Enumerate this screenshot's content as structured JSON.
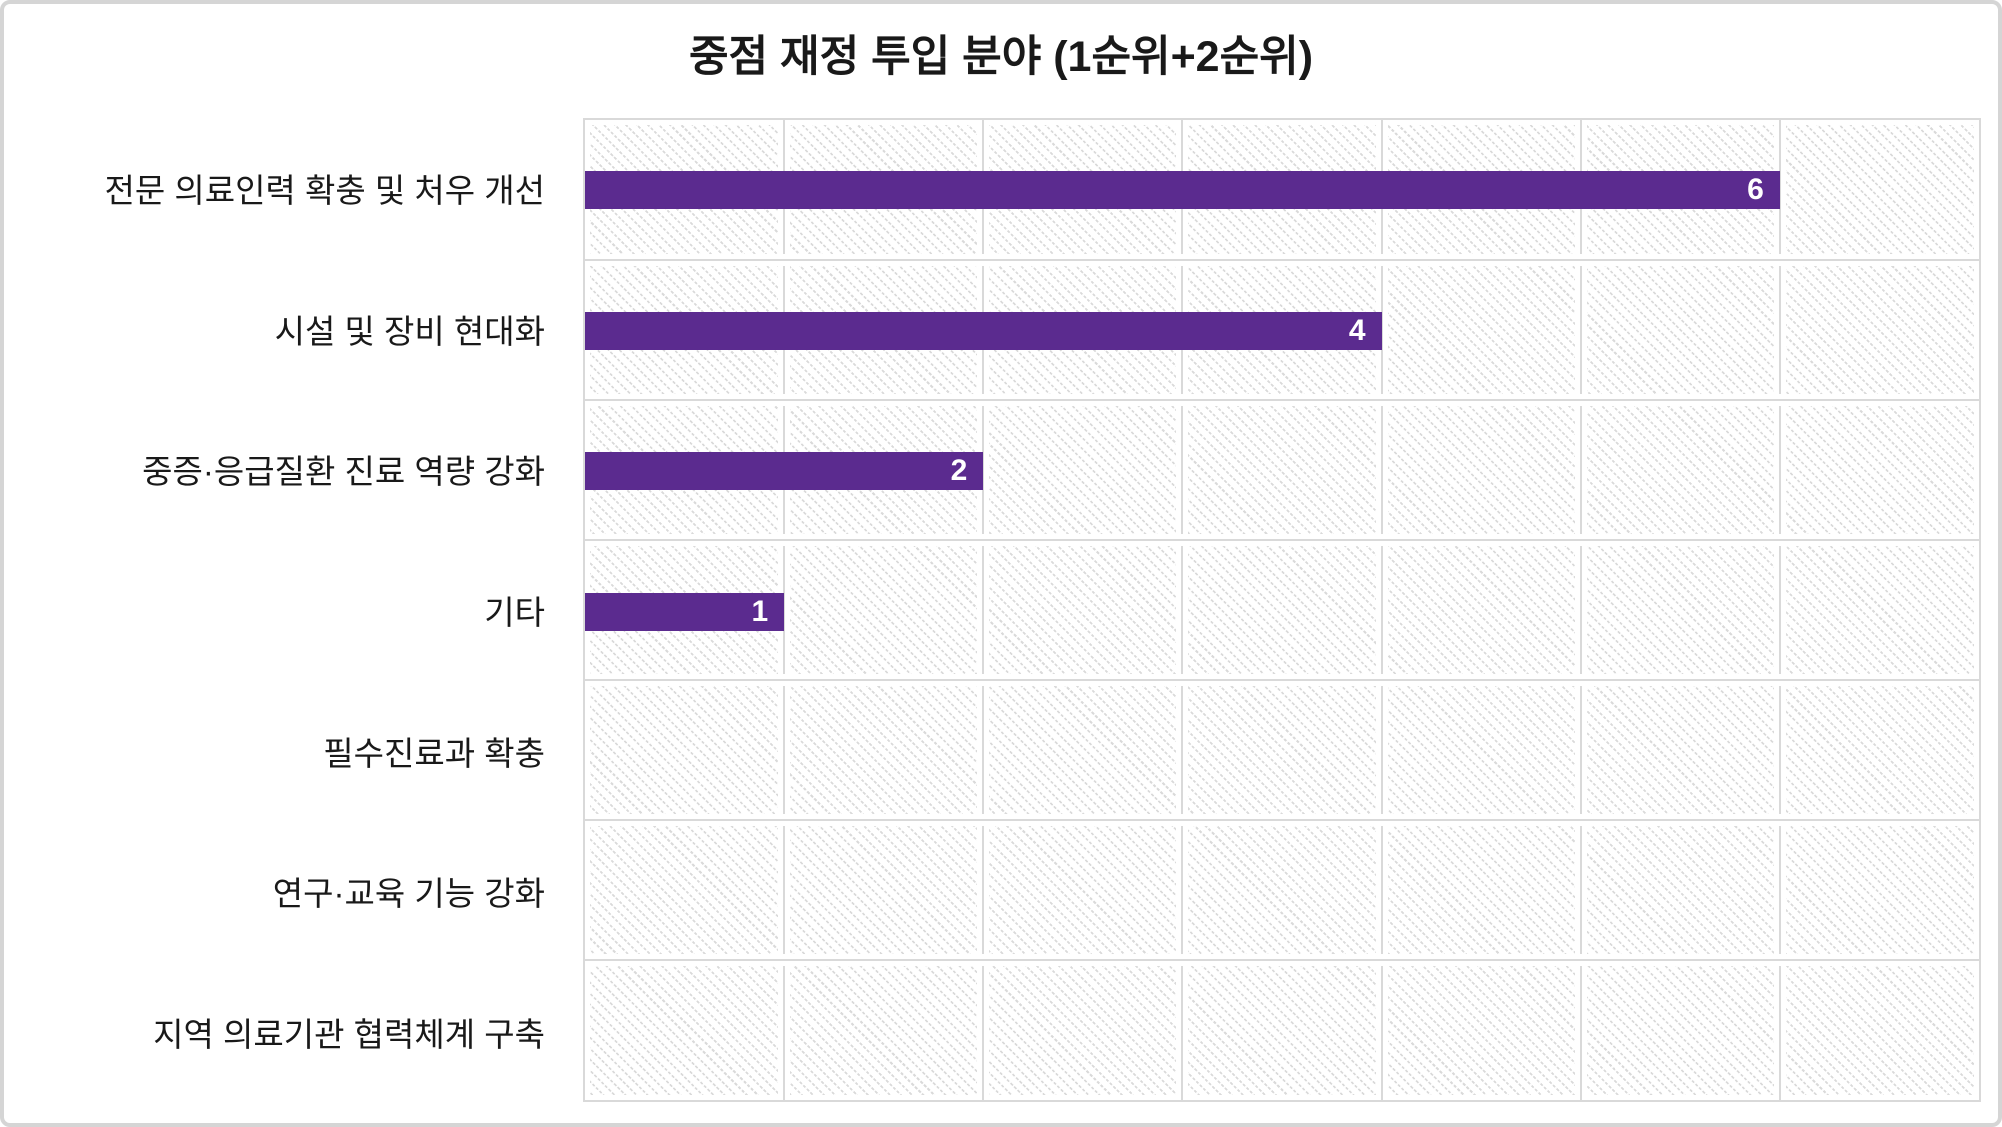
{
  "title": "중점 재정 투입 분야 (1순위+2순위)",
  "chart_data": {
    "type": "bar",
    "orientation": "horizontal",
    "title": "중점 재정 투입 분야 (1순위+2순위)",
    "categories": [
      "전문 의료인력 확충 및 처우 개선",
      "시설 및 장비 현대화",
      "중증·응급질환 진료 역량 강화",
      "기타",
      "필수진료과 확충",
      "연구·교육 기능 강화",
      "지역 의료기관 협력체계 구축"
    ],
    "values": [
      6,
      4,
      2,
      1,
      0,
      0,
      0
    ],
    "xlabel": "",
    "ylabel": "",
    "xlim": [
      0,
      7
    ],
    "gridline_interval": 1,
    "grid": "both",
    "axis_tick_labels_visible": false,
    "bar_color": "#5b2b8f",
    "value_label_color": "#ffffff",
    "gridline_color": "#d9d9d9",
    "plot_hatch": "light-gray-diagonal-dots"
  }
}
